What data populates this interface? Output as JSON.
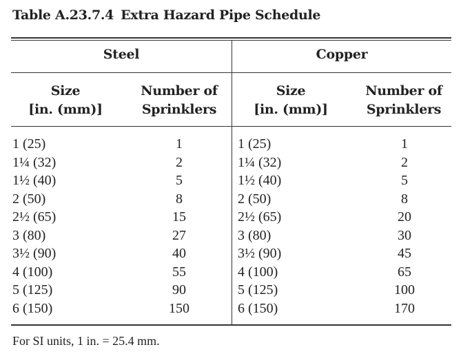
{
  "title": {
    "number": "Table A.23.7.4",
    "name": "Extra Hazard Pipe Schedule"
  },
  "groups": {
    "steel": "Steel",
    "copper": "Copper"
  },
  "columns": {
    "size_line1": "Size",
    "size_line2": "[in. (mm)]",
    "number_line1": "Number of",
    "number_line2": "Sprinklers"
  },
  "steel_rows": [
    {
      "size": "1 (25)",
      "number": "1"
    },
    {
      "size": "1¼ (32)",
      "number": "2"
    },
    {
      "size": "1½ (40)",
      "number": "5"
    },
    {
      "size": "2 (50)",
      "number": "8"
    },
    {
      "size": "2½ (65)",
      "number": "15"
    },
    {
      "size": "3 (80)",
      "number": "27"
    },
    {
      "size": "3½ (90)",
      "number": "40"
    },
    {
      "size": "4 (100)",
      "number": "55"
    },
    {
      "size": "5 (125)",
      "number": "90"
    },
    {
      "size": "6 (150)",
      "number": "150"
    }
  ],
  "copper_rows": [
    {
      "size": "1 (25)",
      "number": "1"
    },
    {
      "size": "1¼ (32)",
      "number": "2"
    },
    {
      "size": "1½ (40)",
      "number": "5"
    },
    {
      "size": "2 (50)",
      "number": "8"
    },
    {
      "size": "2½ (65)",
      "number": "20"
    },
    {
      "size": "3 (80)",
      "number": "30"
    },
    {
      "size": "3½ (90)",
      "number": "45"
    },
    {
      "size": "4 (100)",
      "number": "65"
    },
    {
      "size": "5 (125)",
      "number": "100"
    },
    {
      "size": "6 (150)",
      "number": "170"
    }
  ],
  "footnote": "For SI units, 1 in. = 25.4 mm."
}
